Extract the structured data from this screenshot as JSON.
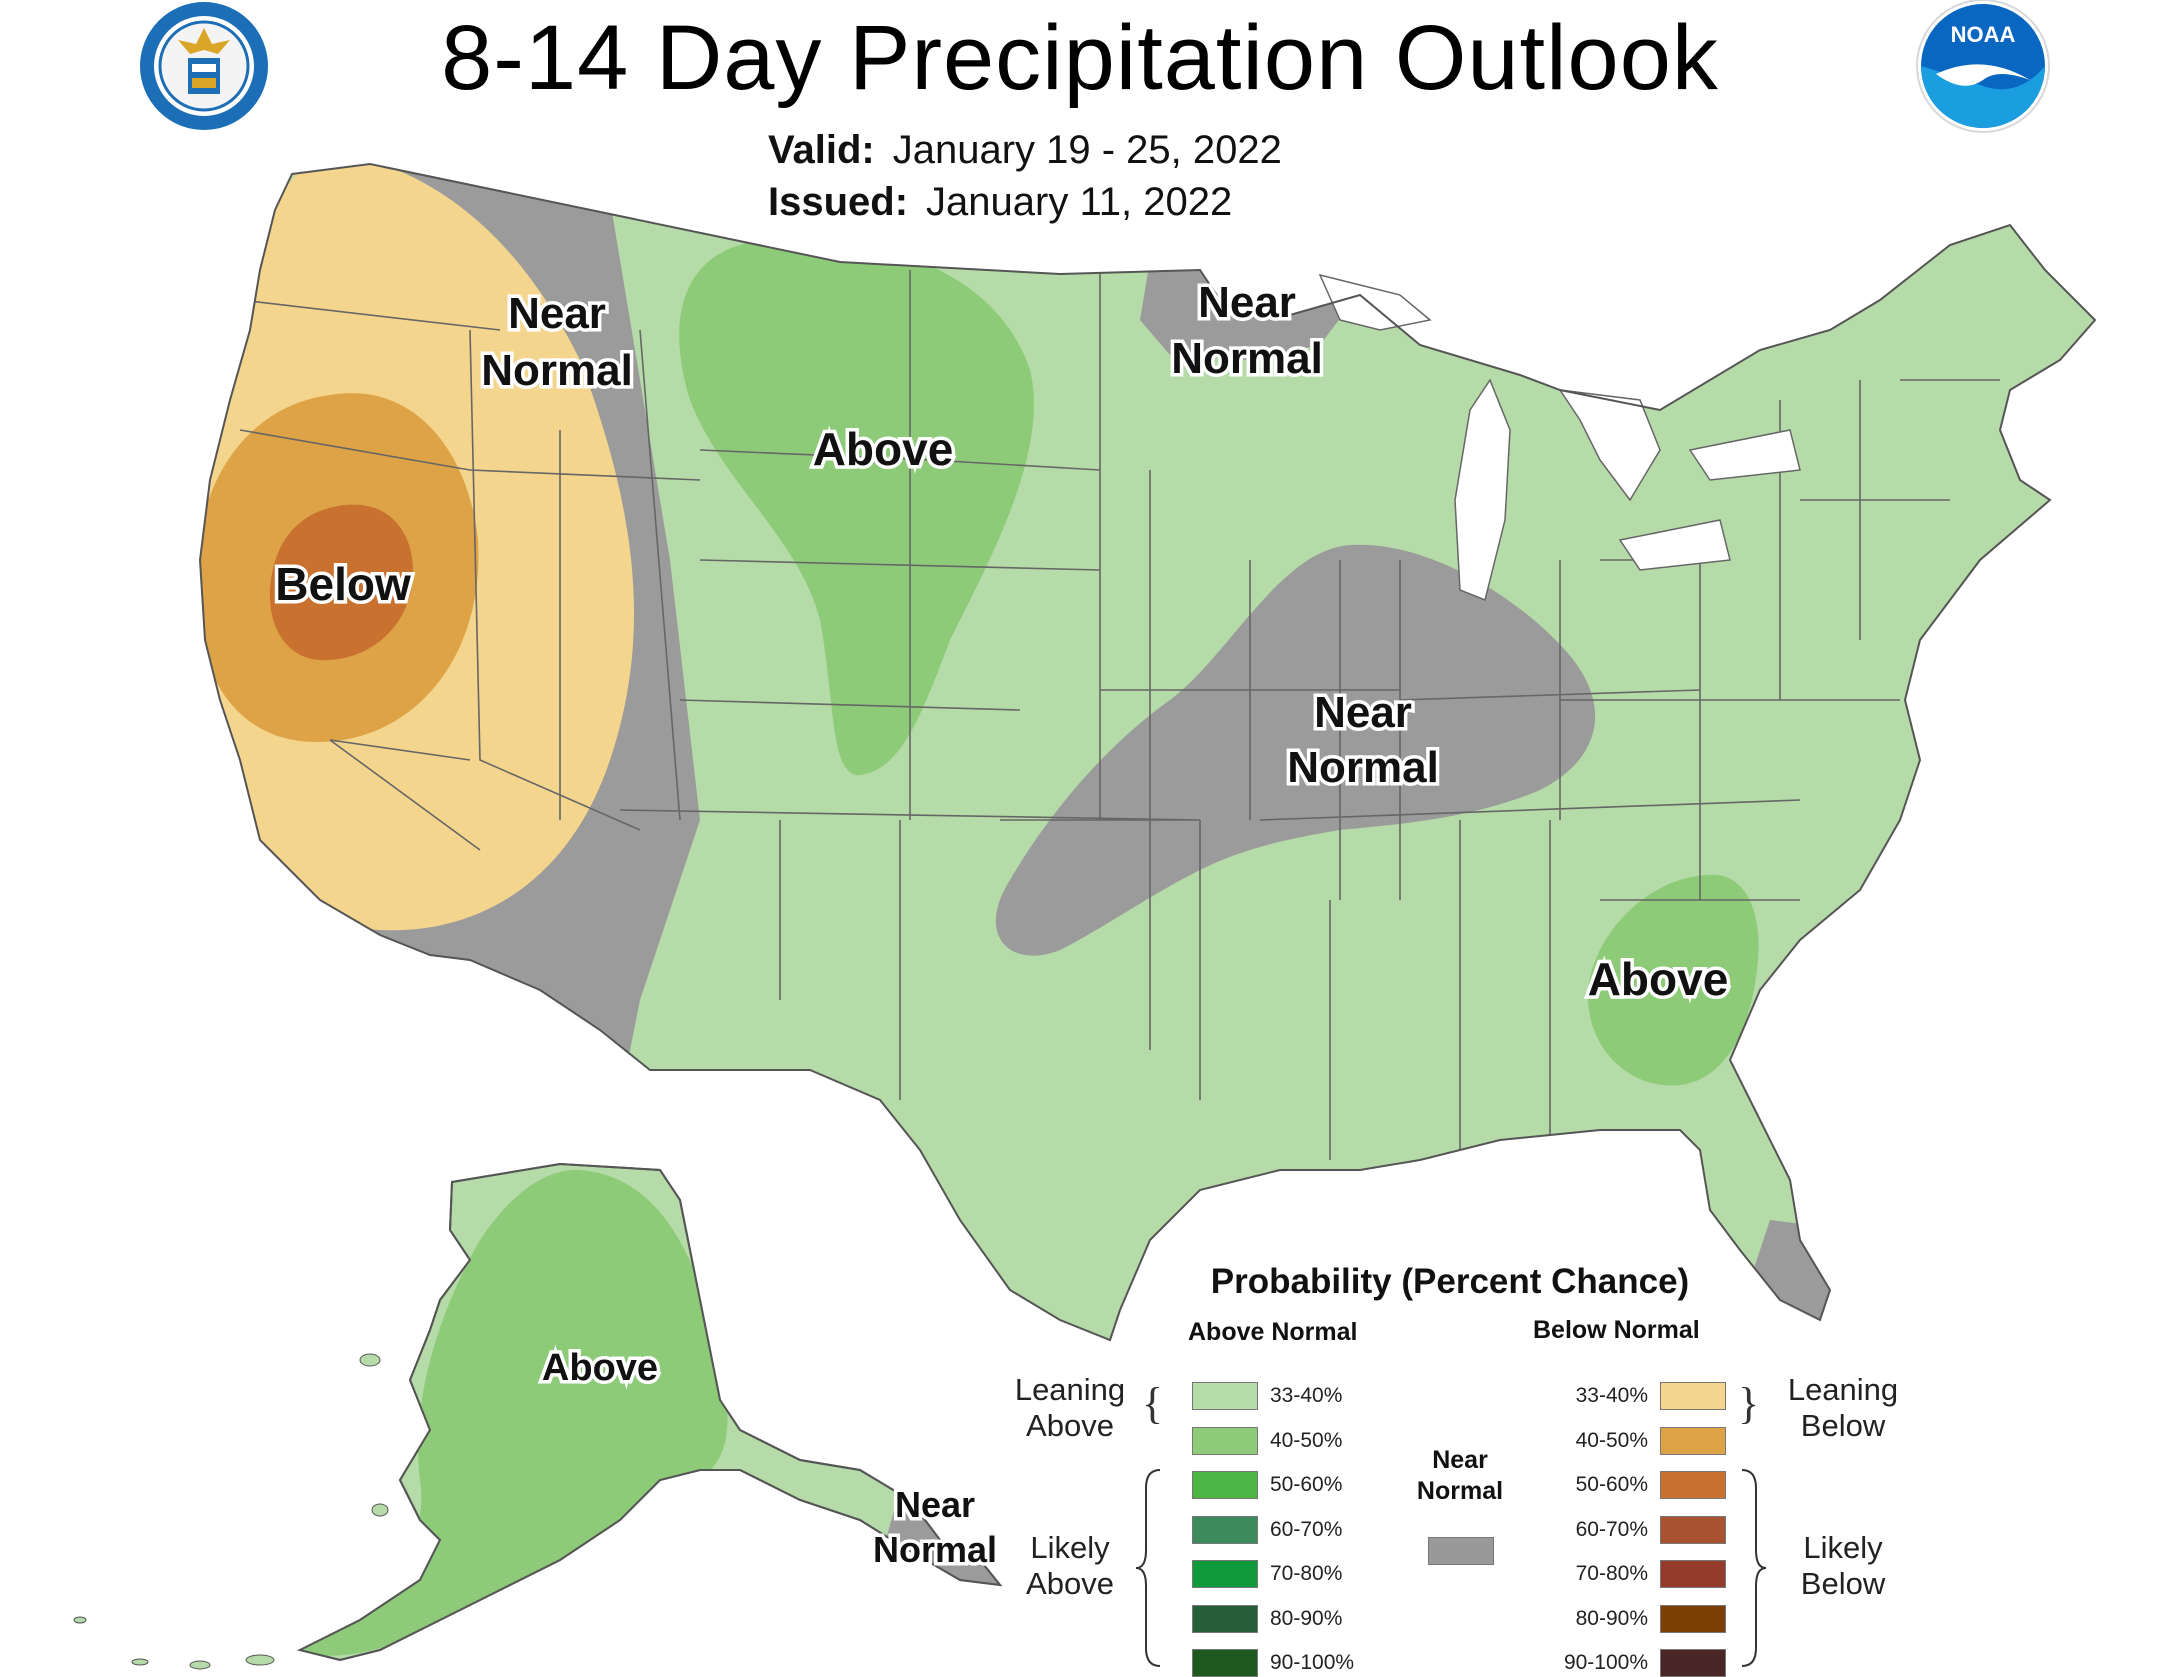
{
  "header": {
    "title": "8-14 Day Precipitation Outlook",
    "valid_label": "Valid:",
    "valid_value": "January 19 - 25, 2022",
    "issued_label": "Issued:",
    "issued_value": "January 11, 2022"
  },
  "logos": {
    "commerce": "department-of-commerce-seal-icon",
    "noaa": "NOAA"
  },
  "map_labels": {
    "west_near_normal": [
      "Near",
      "Normal"
    ],
    "west_below": "Below",
    "north_above": "Above",
    "great_lakes_near_normal": [
      "Near",
      "Normal"
    ],
    "central_near_normal": [
      "Near",
      "Normal"
    ],
    "southeast_above": "Above",
    "alaska_above": "Above",
    "alaska_near_normal": [
      "Near",
      "Normal"
    ]
  },
  "colors": {
    "leaning_above": "#b5dba8",
    "above_40_50": "#8ecb79",
    "near_normal": "#9b9b9b",
    "leaning_below": "#f4d58e",
    "below_40_50": "#dea347",
    "below_50_60": "#c9712f",
    "outline": "#555555"
  },
  "legend": {
    "title": "Probability (Percent Chance)",
    "above_header": "Above Normal",
    "below_header": "Below Normal",
    "leaning_above": [
      "Leaning",
      "Above"
    ],
    "likely_above": [
      "Likely",
      "Above"
    ],
    "leaning_below": [
      "Leaning",
      "Below"
    ],
    "likely_below": [
      "Likely",
      "Below"
    ],
    "near_normal": [
      "Near",
      "Normal"
    ],
    "near_normal_color": "#999999",
    "above": [
      {
        "range": "33-40%",
        "color": "#b5dba8"
      },
      {
        "range": "40-50%",
        "color": "#8ecb79"
      },
      {
        "range": "50-60%",
        "color": "#4cb544"
      },
      {
        "range": "60-70%",
        "color": "#3d8a5c"
      },
      {
        "range": "70-80%",
        "color": "#119a3c"
      },
      {
        "range": "80-90%",
        "color": "#265e3a"
      },
      {
        "range": "90-100%",
        "color": "#1e5a1f"
      }
    ],
    "below": [
      {
        "range": "33-40%",
        "color": "#f4d58e"
      },
      {
        "range": "40-50%",
        "color": "#dea347"
      },
      {
        "range": "50-60%",
        "color": "#c9712f"
      },
      {
        "range": "60-70%",
        "color": "#a8532f"
      },
      {
        "range": "70-80%",
        "color": "#943c2c"
      },
      {
        "range": "80-90%",
        "color": "#7c3f04"
      },
      {
        "range": "90-100%",
        "color": "#4b2626"
      }
    ]
  }
}
